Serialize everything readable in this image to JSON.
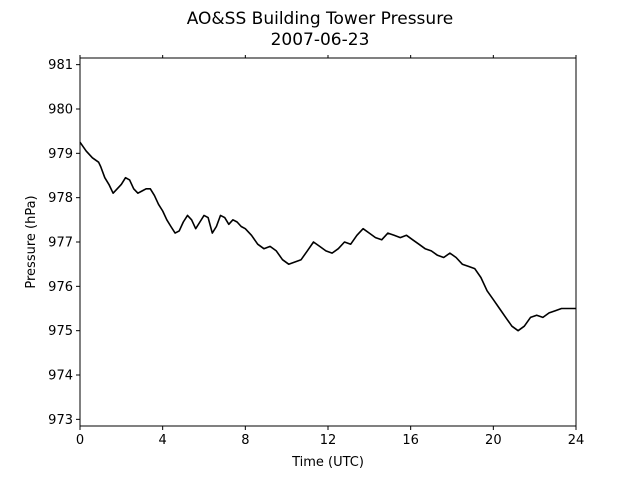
{
  "chart_data": {
    "type": "line",
    "title": "AO&SS Building Tower Pressure",
    "subtitle": "2007-06-23",
    "xlabel": "Time (UTC)",
    "ylabel": "Pressure (hPa)",
    "xlim": [
      0,
      24
    ],
    "ylim": [
      972.85,
      981.15
    ],
    "xticks": [
      0,
      4,
      8,
      12,
      16,
      20,
      24
    ],
    "yticks": [
      973,
      974,
      975,
      976,
      977,
      978,
      979,
      980,
      981
    ],
    "grid": false,
    "line_color": "#000000",
    "series": [
      {
        "x": [
          0,
          0.3,
          0.6,
          0.9,
          1.0,
          1.2,
          1.4,
          1.6,
          1.8,
          2.0,
          2.2,
          2.4,
          2.6,
          2.8,
          3.0,
          3.2,
          3.4,
          3.6,
          3.8,
          4.0,
          4.2,
          4.4,
          4.6,
          4.8,
          5.0,
          5.2,
          5.4,
          5.6,
          5.8,
          6.0,
          6.2,
          6.4,
          6.6,
          6.8,
          7.0,
          7.2,
          7.4,
          7.6,
          7.8,
          8.0,
          8.3,
          8.6,
          8.9,
          9.2,
          9.5,
          9.8,
          10.1,
          10.4,
          10.7,
          11.0,
          11.3,
          11.6,
          11.9,
          12.2,
          12.5,
          12.8,
          13.1,
          13.4,
          13.7,
          14.0,
          14.3,
          14.6,
          14.9,
          15.2,
          15.5,
          15.8,
          16.1,
          16.4,
          16.7,
          17.0,
          17.3,
          17.6,
          17.9,
          18.2,
          18.5,
          18.8,
          19.1,
          19.4,
          19.7,
          20.0,
          20.3,
          20.6,
          20.9,
          21.2,
          21.5,
          21.8,
          22.1,
          22.4,
          22.7,
          23.0,
          23.3,
          23.6,
          24.0
        ],
        "y": [
          979.25,
          979.05,
          978.9,
          978.8,
          978.7,
          978.45,
          978.3,
          978.1,
          978.2,
          978.3,
          978.45,
          978.4,
          978.2,
          978.1,
          978.15,
          978.2,
          978.2,
          978.05,
          977.85,
          977.7,
          977.5,
          977.35,
          977.2,
          977.25,
          977.45,
          977.6,
          977.5,
          977.3,
          977.45,
          977.6,
          977.55,
          977.2,
          977.35,
          977.6,
          977.55,
          977.4,
          977.5,
          977.45,
          977.35,
          977.3,
          977.15,
          976.95,
          976.85,
          976.9,
          976.8,
          976.6,
          976.5,
          976.55,
          976.6,
          976.8,
          977.0,
          976.9,
          976.8,
          976.75,
          976.85,
          977.0,
          976.95,
          977.15,
          977.3,
          977.2,
          977.1,
          977.05,
          977.2,
          977.15,
          977.1,
          977.15,
          977.05,
          976.95,
          976.85,
          976.8,
          976.7,
          976.65,
          976.75,
          976.65,
          976.5,
          976.45,
          976.4,
          976.2,
          975.9,
          975.7,
          975.5,
          975.3,
          975.1,
          975.0,
          975.1,
          975.3,
          975.35,
          975.3,
          975.4,
          975.45,
          975.5,
          975.5,
          975.5
        ]
      }
    ]
  }
}
